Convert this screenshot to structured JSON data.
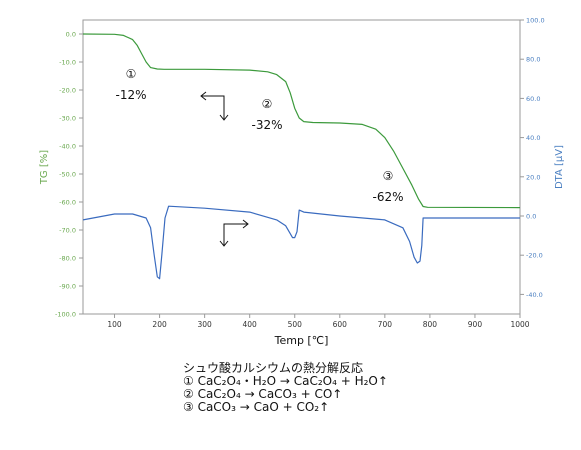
{
  "chart_data": {
    "type": "line",
    "xlabel": "Temp [℃]",
    "ylabel_left": "TG [%]",
    "ylabel_right": "DTA [μV]",
    "xlim": [
      30,
      1000
    ],
    "ylim_left": [
      -100,
      5
    ],
    "ylim_right": [
      -50,
      100
    ],
    "xticks": [
      100,
      200,
      300,
      400,
      500,
      600,
      700,
      800,
      900,
      1000
    ],
    "yticks_left": [
      "0.0",
      "-10.0",
      "-20.0",
      "-30.0",
      "-40.0",
      "-50.0",
      "-60.0",
      "-70.0",
      "-80.0",
      "-90.0",
      "-100.0"
    ],
    "yticks_right": [
      "100.0",
      "80.0",
      "60.0",
      "40.0",
      "20.0",
      "0.0",
      "-20.0",
      "-40.0"
    ],
    "colors": {
      "tg": "#3c9a3c",
      "dta": "#3a6bbf",
      "left_axis_text": "#6aa84f",
      "right_axis_text": "#4a7fc1"
    },
    "grid": false,
    "series": [
      {
        "name": "TG",
        "axis": "left",
        "x": [
          30,
          100,
          120,
          140,
          150,
          160,
          170,
          180,
          195,
          210,
          300,
          400,
          440,
          460,
          480,
          490,
          500,
          510,
          520,
          540,
          600,
          650,
          680,
          700,
          720,
          740,
          760,
          775,
          785,
          795,
          1000
        ],
        "y": [
          0,
          -0.1,
          -0.5,
          -2,
          -4,
          -7,
          -10,
          -12,
          -12.5,
          -12.6,
          -12.6,
          -12.9,
          -13.5,
          -14.5,
          -17,
          -21,
          -26.5,
          -30,
          -31.3,
          -31.6,
          -31.8,
          -32.3,
          -34,
          -37,
          -42,
          -48,
          -54,
          -59,
          -61.6,
          -61.9,
          -62
        ]
      },
      {
        "name": "DTA",
        "axis": "right",
        "x": [
          30,
          100,
          140,
          170,
          180,
          188,
          195,
          200,
          205,
          212,
          220,
          300,
          400,
          460,
          480,
          490,
          495,
          500,
          505,
          510,
          520,
          600,
          700,
          740,
          755,
          765,
          772,
          778,
          782,
          785,
          800,
          900,
          1000
        ],
        "y": [
          -2,
          1,
          1,
          -1,
          -6,
          -20,
          -31,
          -32,
          -20,
          -1,
          5,
          4,
          2,
          -2,
          -5,
          -9,
          -11,
          -11,
          -8,
          3,
          2,
          0,
          -2,
          -6,
          -13,
          -21,
          -24,
          -23,
          -15,
          -1,
          -1,
          -1,
          -1
        ]
      }
    ],
    "annotations": [
      {
        "symbol": "①",
        "label": "-12%"
      },
      {
        "symbol": "②",
        "label": "-32%"
      },
      {
        "symbol": "③",
        "label": "-62%"
      }
    ]
  },
  "caption": {
    "title": "シュウ酸カルシウムの熱分解反応",
    "lines": [
      "① CaC₂O₄・H₂O → CaC₂O₄ + H₂O↑",
      "② CaC₂O₄ → CaCO₃ + CO↑",
      "③ CaCO₃ → CaO + CO₂↑"
    ]
  }
}
